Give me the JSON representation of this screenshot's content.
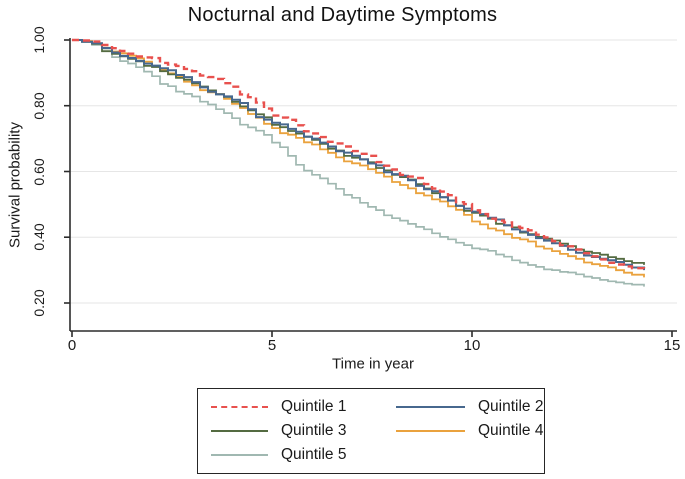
{
  "page": {
    "background": "#ffffff"
  },
  "chart_data": {
    "type": "line",
    "subtype": "kaplan_meier_step_survival",
    "title": "Nocturnal and Daytime Symptoms",
    "xlabel": "Time in year",
    "ylabel": "Survival probability",
    "xlim": [
      0,
      15.15
    ],
    "ylim": [
      0.115,
      1.0
    ],
    "grid": "horizontal",
    "grid_color": "#e6e6e6",
    "axis_color": "#2c2c2c",
    "legend_position": "bottom-center",
    "x_ticks": [
      {
        "value": 0,
        "label": "0"
      },
      {
        "value": 5,
        "label": "5"
      },
      {
        "value": 10,
        "label": "10"
      },
      {
        "value": 15,
        "label": "15"
      }
    ],
    "y_ticks": [
      {
        "value": 0.2,
        "label": "0.20"
      },
      {
        "value": 0.4,
        "label": "0.40"
      },
      {
        "value": 0.6,
        "label": "0.60"
      },
      {
        "value": 0.8,
        "label": "0.80"
      },
      {
        "value": 1.0,
        "label": "1.00"
      }
    ],
    "series": [
      {
        "name": "Quintile 1",
        "color": "#e8514e",
        "style": "dashed",
        "width": 2.4,
        "points": [
          [
            0,
            1.0
          ],
          [
            0.5,
            0.995
          ],
          [
            1,
            0.975
          ],
          [
            2,
            0.945
          ],
          [
            3,
            0.905
          ],
          [
            4,
            0.858
          ],
          [
            5,
            0.77
          ],
          [
            6,
            0.716
          ],
          [
            7,
            0.662
          ],
          [
            8,
            0.606
          ],
          [
            9,
            0.548
          ],
          [
            10,
            0.482
          ],
          [
            11,
            0.432
          ],
          [
            12,
            0.388
          ],
          [
            13,
            0.342
          ],
          [
            14,
            0.306
          ],
          [
            14.3,
            0.296
          ]
        ]
      },
      {
        "name": "Quintile 2",
        "color": "#47688e",
        "style": "solid",
        "width": 2.0,
        "points": [
          [
            0,
            1.0
          ],
          [
            0.5,
            0.99
          ],
          [
            1,
            0.962
          ],
          [
            2,
            0.922
          ],
          [
            3,
            0.872
          ],
          [
            4,
            0.818
          ],
          [
            5,
            0.748
          ],
          [
            6,
            0.7
          ],
          [
            7,
            0.648
          ],
          [
            8,
            0.592
          ],
          [
            9,
            0.54
          ],
          [
            10,
            0.478
          ],
          [
            11,
            0.424
          ],
          [
            12,
            0.382
          ],
          [
            13,
            0.34
          ],
          [
            14,
            0.308
          ],
          [
            14.3,
            0.3
          ]
        ]
      },
      {
        "name": "Quintile 3",
        "color": "#546b41",
        "style": "solid",
        "width": 1.8,
        "points": [
          [
            0,
            1.0
          ],
          [
            0.5,
            0.988
          ],
          [
            1,
            0.958
          ],
          [
            2,
            0.918
          ],
          [
            3,
            0.868
          ],
          [
            4,
            0.812
          ],
          [
            5,
            0.742
          ],
          [
            6,
            0.696
          ],
          [
            7,
            0.642
          ],
          [
            8,
            0.59
          ],
          [
            9,
            0.534
          ],
          [
            10,
            0.474
          ],
          [
            11,
            0.43
          ],
          [
            12,
            0.39
          ],
          [
            13,
            0.352
          ],
          [
            14,
            0.322
          ],
          [
            14.3,
            0.316
          ]
        ]
      },
      {
        "name": "Quintile 4",
        "color": "#eaa23d",
        "style": "solid",
        "width": 1.8,
        "points": [
          [
            0,
            1.0
          ],
          [
            0.5,
            0.99
          ],
          [
            1,
            0.965
          ],
          [
            2,
            0.92
          ],
          [
            3,
            0.862
          ],
          [
            4,
            0.806
          ],
          [
            5,
            0.732
          ],
          [
            6,
            0.682
          ],
          [
            7,
            0.625
          ],
          [
            8,
            0.568
          ],
          [
            9,
            0.515
          ],
          [
            10,
            0.448
          ],
          [
            11,
            0.398
          ],
          [
            12,
            0.358
          ],
          [
            13,
            0.318
          ],
          [
            14,
            0.286
          ],
          [
            14.3,
            0.278
          ]
        ]
      },
      {
        "name": "Quintile 5",
        "color": "#a0b8b1",
        "style": "solid",
        "width": 1.7,
        "points": [
          [
            0,
            1.0
          ],
          [
            0.5,
            0.985
          ],
          [
            1,
            0.948
          ],
          [
            2,
            0.89
          ],
          [
            3,
            0.828
          ],
          [
            4,
            0.762
          ],
          [
            5,
            0.688
          ],
          [
            6,
            0.59
          ],
          [
            7,
            0.52
          ],
          [
            8,
            0.458
          ],
          [
            9,
            0.412
          ],
          [
            10,
            0.366
          ],
          [
            11,
            0.33
          ],
          [
            12,
            0.3
          ],
          [
            13,
            0.276
          ],
          [
            14,
            0.256
          ],
          [
            14.3,
            0.25
          ]
        ]
      }
    ]
  }
}
